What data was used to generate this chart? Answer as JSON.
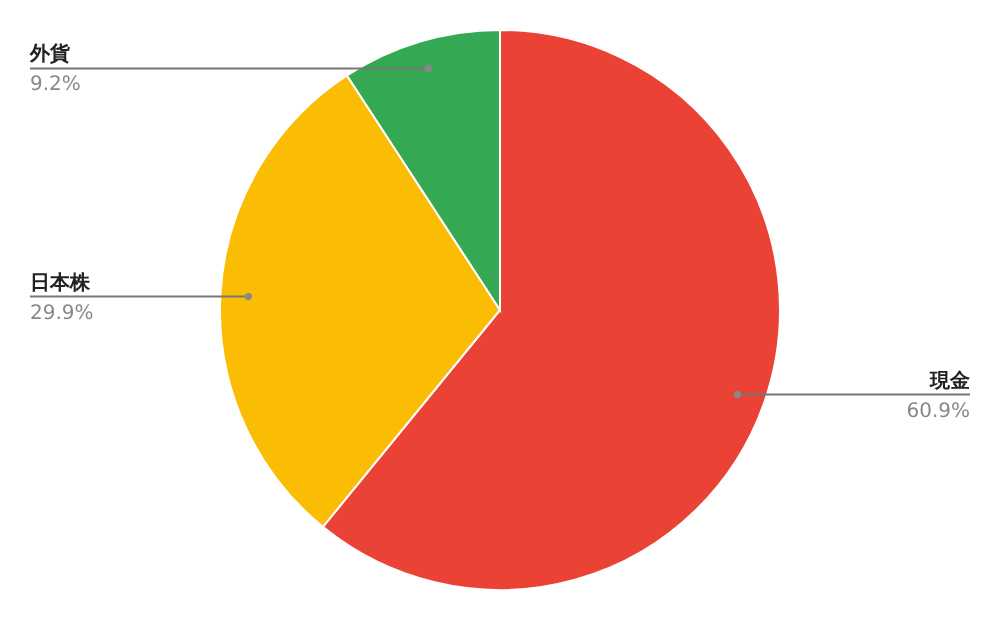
{
  "chart_data": {
    "type": "pie",
    "categories": [
      "現金",
      "日本株",
      "外貨"
    ],
    "values": [
      60.9,
      29.9,
      9.2
    ],
    "colors": [
      "#ea4335",
      "#fbbc04",
      "#34a853"
    ],
    "value_labels": [
      "60.9%",
      "29.9%",
      "9.2%"
    ]
  }
}
